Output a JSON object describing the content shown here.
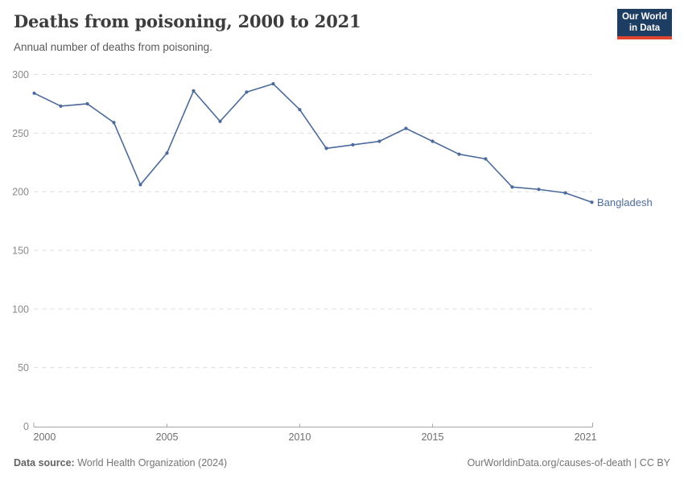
{
  "header": {
    "title": "Deaths from poisoning, 2000 to 2021",
    "subtitle": "Annual number of deaths from poisoning."
  },
  "logo": {
    "line1": "Our World",
    "line2": "in Data",
    "bg_color": "#1d3d63",
    "accent_color": "#e0432e"
  },
  "chart_data": {
    "type": "line",
    "title": "Deaths from poisoning, 2000 to 2021",
    "subtitle": "Annual number of deaths from poisoning.",
    "xlabel": "",
    "ylabel": "",
    "xlim": [
      2000,
      2021
    ],
    "ylim": [
      0,
      300
    ],
    "x_ticks": [
      2000,
      2005,
      2010,
      2015,
      2021
    ],
    "y_ticks": [
      0,
      50,
      100,
      150,
      200,
      250,
      300
    ],
    "grid": "horizontal-dashed",
    "grid_color": "#dcdcdc",
    "axis_color": "#a6a6a6",
    "legend_position": "end-of-line-label",
    "x": [
      2000,
      2001,
      2002,
      2003,
      2004,
      2005,
      2006,
      2007,
      2008,
      2009,
      2010,
      2011,
      2012,
      2013,
      2014,
      2015,
      2016,
      2017,
      2018,
      2019,
      2020,
      2021
    ],
    "series": [
      {
        "name": "Bangladesh",
        "color": "#4c6a9c",
        "values": [
          284,
          273,
          275,
          259,
          206,
          233,
          286,
          260,
          285,
          292,
          270,
          237,
          240,
          243,
          254,
          243,
          232,
          228,
          204,
          202,
          199,
          191
        ]
      }
    ]
  },
  "footer": {
    "source_label": "Data source:",
    "source_value": " World Health Organization (2024)",
    "credit": "OurWorldinData.org/causes-of-death | CC BY"
  }
}
